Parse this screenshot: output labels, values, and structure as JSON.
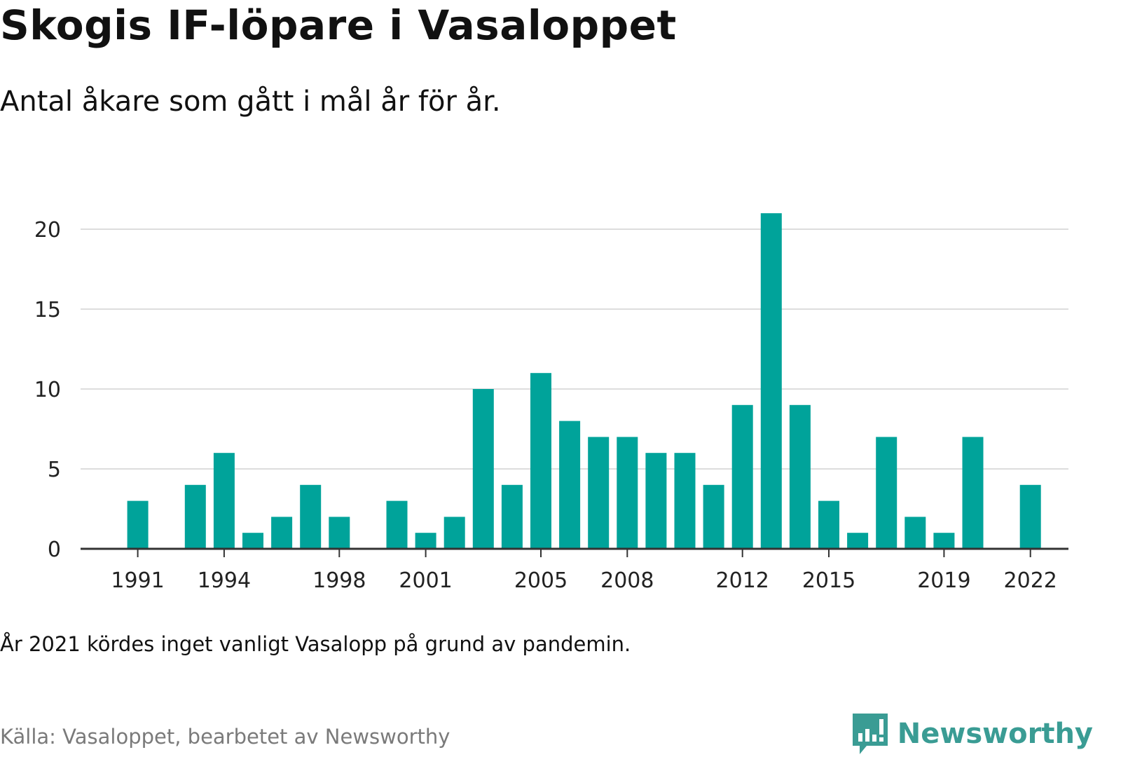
{
  "header": {
    "title": "Skogis IF-löpare i Vasaloppet",
    "subtitle": "Antal åkare som gått i mål år för år."
  },
  "footer": {
    "note": "År 2021 kördes inget vanligt Vasalopp på grund av pandemin.",
    "source": "Källa: Vasaloppet, bearbetet av Newsworthy",
    "logo_text": "Newsworthy",
    "logo_icon": "newsworthy-logo-icon"
  },
  "colors": {
    "bar": "#00a39a",
    "logo": "#3a9c94",
    "grid": "#dddddd",
    "axis": "#333333"
  },
  "chart_data": {
    "type": "bar",
    "title": "Skogis IF-löpare i Vasaloppet",
    "subtitle": "Antal åkare som gått i mål år för år.",
    "xlabel": "",
    "ylabel": "",
    "ylim": [
      0,
      22
    ],
    "yticks": [
      0,
      5,
      10,
      15,
      20
    ],
    "xtick_labels": [
      "1991",
      "1994",
      "1998",
      "2001",
      "2005",
      "2008",
      "2012",
      "2015",
      "2019",
      "2022"
    ],
    "grid": true,
    "legend": "none",
    "categories": [
      1990,
      1991,
      1992,
      1993,
      1994,
      1995,
      1996,
      1997,
      1998,
      1999,
      2000,
      2001,
      2002,
      2003,
      2004,
      2005,
      2006,
      2007,
      2008,
      2009,
      2010,
      2011,
      2012,
      2013,
      2014,
      2015,
      2016,
      2017,
      2018,
      2019,
      2020,
      2021,
      2022,
      2023
    ],
    "values": [
      null,
      3,
      null,
      4,
      6,
      1,
      2,
      4,
      2,
      null,
      3,
      1,
      2,
      10,
      4,
      11,
      8,
      7,
      7,
      6,
      6,
      4,
      9,
      21,
      9,
      3,
      1,
      7,
      2,
      1,
      7,
      null,
      4,
      null
    ]
  }
}
